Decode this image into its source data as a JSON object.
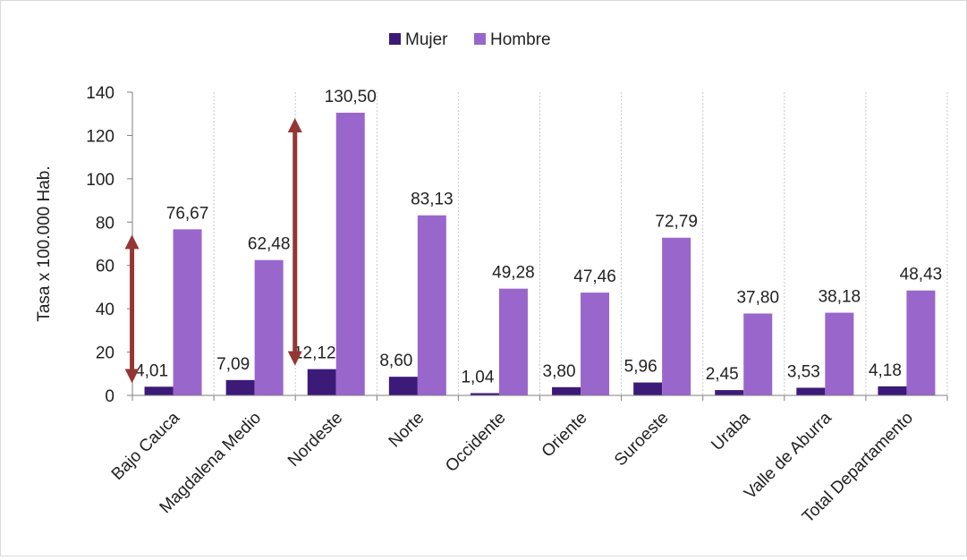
{
  "chart_data": {
    "type": "bar",
    "ylabel": "Tasa x 100.000 Hab.",
    "xlabel": "",
    "ylim": [
      0,
      140
    ],
    "yticks": [
      0,
      20,
      40,
      60,
      80,
      100,
      120,
      140
    ],
    "grid": "vertical dotted lines between categories",
    "legend_position": "top",
    "categories": [
      "Bajo Cauca",
      "Magdalena Medio",
      "Nordeste",
      "Norte",
      "Occidente",
      "Oriente",
      "Suroeste",
      "Uraba",
      "Valle de Aburra",
      "Total Departamento"
    ],
    "series": [
      {
        "name": "Mujer",
        "color": "#3b1a78",
        "values": [
          4.01,
          7.09,
          12.12,
          8.6,
          1.04,
          3.8,
          5.96,
          2.45,
          3.53,
          4.18
        ],
        "labels": [
          "4,01",
          "7,09",
          "12,12",
          "8,60",
          "1,04",
          "3,80",
          "5,96",
          "2,45",
          "3,53",
          "4,18"
        ]
      },
      {
        "name": "Hombre",
        "color": "#9966cc",
        "values": [
          76.67,
          62.48,
          130.5,
          83.13,
          49.28,
          47.46,
          72.79,
          37.8,
          38.18,
          48.43
        ],
        "labels": [
          "76,67",
          "62,48",
          "130,50",
          "83,13",
          "49,28",
          "47,46",
          "72,79",
          "37,80",
          "38,18",
          "48,43"
        ]
      }
    ],
    "annotations": [
      {
        "type": "double-arrow",
        "category": "Bajo Cauca",
        "from": 4.01,
        "to": 76.67,
        "color": "#943634"
      },
      {
        "type": "double-arrow",
        "category": "Nordeste",
        "from": 12.12,
        "to": 130.5,
        "color": "#943634"
      }
    ]
  }
}
